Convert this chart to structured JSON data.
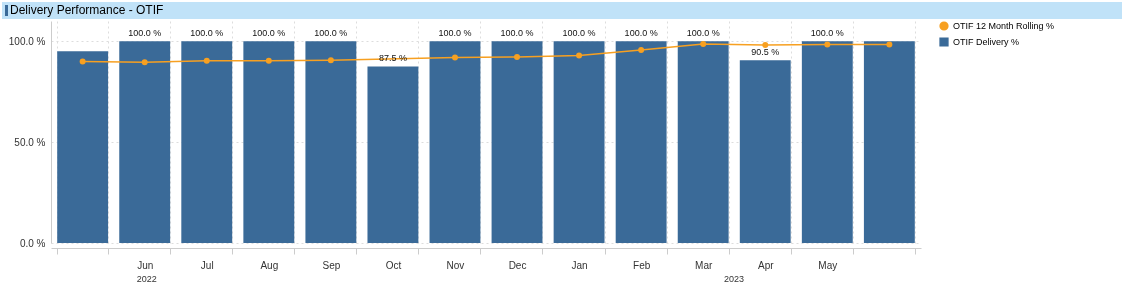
{
  "chart_data": {
    "type": "bar",
    "title": "Delivery Performance - OTIF",
    "categories": [
      null,
      "Jun",
      "Jul",
      "Aug",
      "Sep",
      "Oct",
      "Nov",
      "Dec",
      "Jan",
      "Feb",
      "Mar",
      "Apr",
      "May",
      null
    ],
    "series": [
      {
        "name": "OTIF 12 Month Rolling %",
        "type": "line",
        "color": "#f7a021",
        "values": [
          89.9,
          89.6,
          90.3,
          90.3,
          90.6,
          null,
          91.9,
          92.2,
          92.9,
          95.6,
          98.6,
          98.1,
          98.3,
          98.3
        ]
      },
      {
        "name": "OTIF Delivery %",
        "color": "#3a6a98",
        "values": [
          95,
          100,
          100,
          100,
          100,
          87.5,
          100,
          100,
          100,
          100,
          100,
          90.5,
          100,
          100
        ],
        "value_labels": [
          null,
          "100.0 %",
          "100.0 %",
          "100.0 %",
          "100.0 %",
          "87.5 %",
          "100.0 %",
          "100.0 %",
          "100.0 %",
          "100.0 %",
          "100.0 %",
          "90.5 %",
          "100.0 %",
          null
        ]
      }
    ],
    "ylim": [
      0,
      110
    ],
    "yticks": [
      {
        "value": 0,
        "label": "0.0 %"
      },
      {
        "value": 50,
        "label": "50.0 %"
      },
      {
        "value": 100,
        "label": "100.0 %"
      }
    ],
    "grid": true,
    "legend": "right",
    "marker": "circle",
    "annotations": [
      "2022",
      "2023"
    ]
  }
}
